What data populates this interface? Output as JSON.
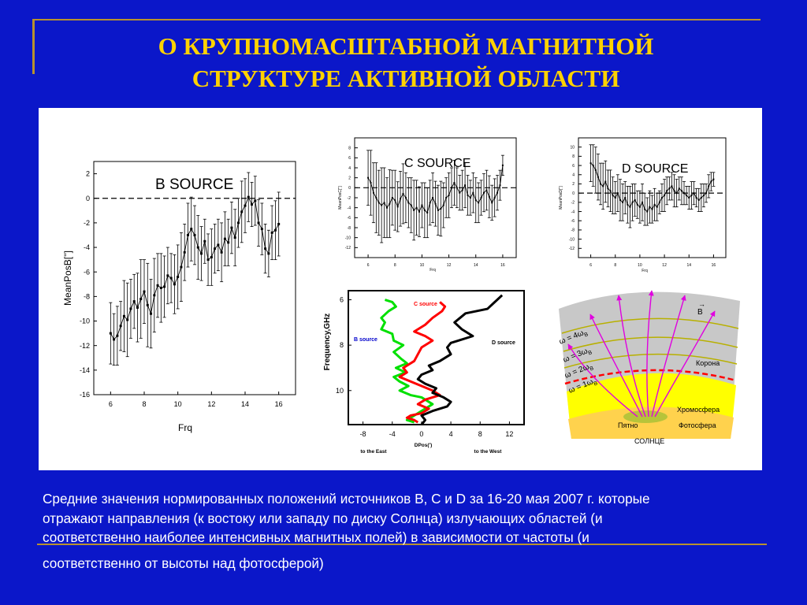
{
  "slide": {
    "title_line1": "О КРУПНОМАСШТАБНОЙ МАГНИТНОЙ",
    "title_line2": "СТРУКТУРЕ АКТИВНОЙ ОБЛАСТИ",
    "caption_lines": [
      " Средние значения нормированных положений источников B, C и D за 16-20 мая 2007 г. которые",
      "отражают направления (к востоку или западу по диску Солнца) излучающих областей (и",
      "соответственно наиболее интенсивных магнитных полей) в зависимости от частоты (и",
      "соответственно от высоты над фотосферой)"
    ],
    "colors": {
      "background": "#0b17c9",
      "title": "#ffd200",
      "rule": "#b8922e",
      "caption": "#ffffff"
    }
  },
  "chart_data": [
    {
      "id": "b-source",
      "type": "line",
      "title": "B SOURCE",
      "xlabel": "Frq",
      "ylabel": "MeanPosB['']",
      "xlim": [
        5,
        17
      ],
      "ylim": [
        -16,
        3
      ],
      "xticks": [
        6,
        8,
        10,
        12,
        14,
        16
      ],
      "yticks": [
        2,
        0,
        -2,
        -4,
        -6,
        -8,
        -10,
        -12,
        -14,
        -16
      ],
      "reference_line": 0,
      "x": [
        6.0,
        6.2,
        6.4,
        6.6,
        6.8,
        7.0,
        7.2,
        7.4,
        7.6,
        7.8,
        8.0,
        8.2,
        8.4,
        8.6,
        8.8,
        9.0,
        9.2,
        9.4,
        9.6,
        9.8,
        10.0,
        10.2,
        10.4,
        10.6,
        10.8,
        11.0,
        11.2,
        11.4,
        11.6,
        11.8,
        12.0,
        12.2,
        12.4,
        12.6,
        12.8,
        13.0,
        13.2,
        13.4,
        13.6,
        13.8,
        14.0,
        14.2,
        14.4,
        14.6,
        14.8,
        15.0,
        15.2,
        15.4,
        15.6,
        15.8,
        16.0
      ],
      "y": [
        -11,
        -11.5,
        -11.2,
        -10.4,
        -9.6,
        -9.9,
        -9.0,
        -8.4,
        -8.9,
        -8.2,
        -7.6,
        -8.7,
        -9.4,
        -7.9,
        -7.1,
        -7.3,
        -7.2,
        -6.3,
        -6.5,
        -7.0,
        -6.4,
        -5.6,
        -4.4,
        -3.0,
        -2.5,
        -3.0,
        -4.0,
        -4.5,
        -3.5,
        -5.0,
        -4.8,
        -4.1,
        -3.8,
        -4.4,
        -3.3,
        -3.6,
        -2.4,
        -3.2,
        -2.0,
        -1.1,
        -0.6,
        0.1,
        -0.5,
        -0.2,
        -2.0,
        -2.5,
        -4.1,
        -4.5,
        -2.8,
        -2.6,
        -2.1
      ],
      "error": [
        2.5,
        2.1,
        2.4,
        2.0,
        2.9,
        3.0,
        2.4,
        2.2,
        2.8,
        3.2,
        2.6,
        3.4,
        2.8,
        3.0,
        2.6,
        2.8,
        2.5,
        2.3,
        2.0,
        2.4,
        2.6,
        2.8,
        2.3,
        2.6,
        2.6,
        2.4,
        2.6,
        2.2,
        1.8,
        2.1,
        2.3,
        2.0,
        2.1,
        2.4,
        2.2,
        1.9,
        2.1,
        2.3,
        2.0,
        2.5,
        2.2,
        2.0,
        1.8,
        2.0,
        1.9,
        2.1,
        2.0,
        1.9,
        2.2,
        2.4,
        2.6
      ]
    },
    {
      "id": "c-source",
      "type": "line",
      "title": "C SOURCE",
      "xlabel": "Frq",
      "ylabel": "MeanPosC['']",
      "xlim": [
        5,
        17
      ],
      "ylim": [
        -14,
        10
      ],
      "xticks": [
        6,
        8,
        10,
        12,
        14,
        16
      ],
      "yticks": [
        8,
        6,
        4,
        2,
        0,
        -2,
        -4,
        -6,
        -8,
        -10,
        -12
      ],
      "reference_line": 0,
      "x": [
        6.0,
        6.2,
        6.4,
        6.6,
        6.8,
        7.0,
        7.2,
        7.4,
        7.6,
        7.8,
        8.0,
        8.2,
        8.4,
        8.6,
        8.8,
        9.0,
        9.2,
        9.4,
        9.6,
        9.8,
        10.0,
        10.2,
        10.4,
        10.6,
        10.8,
        11.0,
        11.2,
        11.4,
        11.6,
        11.8,
        12.0,
        12.2,
        12.4,
        12.6,
        12.8,
        13.0,
        13.2,
        13.4,
        13.6,
        13.8,
        14.0,
        14.2,
        14.4,
        14.6,
        14.8,
        15.0,
        15.2,
        15.4,
        15.6,
        15.8,
        16.0
      ],
      "y": [
        2.0,
        1.0,
        -1.0,
        -2.0,
        -3.0,
        -3.5,
        -3.0,
        -4.0,
        -3.2,
        -2.0,
        -2.5,
        -3.8,
        -2.2,
        -1.2,
        -2.0,
        -3.0,
        -3.5,
        -4.5,
        -4.0,
        -4.8,
        -3.5,
        -4.5,
        -5.0,
        -3.0,
        -2.0,
        -3.2,
        -4.5,
        -4.2,
        -3.5,
        -2.0,
        -1.5,
        0.0,
        1.0,
        0.0,
        -1.0,
        -0.5,
        0.5,
        -1.5,
        -2.0,
        -1.0,
        -2.5,
        -3.0,
        -2.0,
        -1.0,
        -0.5,
        -1.8,
        -3.0,
        -2.0,
        -1.0,
        0.5,
        4.5
      ],
      "error": [
        5.5,
        6.5,
        6.0,
        7.0,
        6.5,
        7.5,
        7.0,
        6.0,
        6.8,
        5.5,
        6.0,
        5.0,
        5.5,
        6.0,
        5.0,
        5.0,
        5.5,
        6.0,
        5.5,
        5.0,
        4.5,
        5.5,
        5.0,
        4.5,
        5.0,
        4.5,
        5.0,
        5.5,
        4.5,
        4.0,
        4.5,
        4.0,
        4.5,
        4.0,
        3.5,
        4.0,
        4.5,
        4.0,
        3.5,
        4.0,
        4.5,
        4.0,
        3.5,
        3.8,
        4.0,
        4.2,
        3.5,
        3.8,
        3.5,
        3.0,
        2.0
      ]
    },
    {
      "id": "d-source",
      "type": "line",
      "title": "D SOURCE",
      "xlabel": "Frq",
      "ylabel": "MeanPosD['']",
      "xlim": [
        5,
        17
      ],
      "ylim": [
        -14,
        12
      ],
      "xticks": [
        6,
        8,
        10,
        12,
        14,
        16
      ],
      "yticks": [
        10,
        8,
        6,
        4,
        2,
        0,
        -2,
        -4,
        -6,
        -8,
        -10,
        -12
      ],
      "reference_line": 0,
      "x": [
        6.0,
        6.2,
        6.4,
        6.6,
        6.8,
        7.0,
        7.2,
        7.4,
        7.6,
        7.8,
        8.0,
        8.2,
        8.4,
        8.6,
        8.8,
        9.0,
        9.2,
        9.4,
        9.6,
        9.8,
        10.0,
        10.2,
        10.4,
        10.6,
        10.8,
        11.0,
        11.2,
        11.4,
        11.6,
        11.8,
        12.0,
        12.2,
        12.4,
        12.6,
        12.8,
        13.0,
        13.2,
        13.4,
        13.6,
        13.8,
        14.0,
        14.2,
        14.4,
        14.6,
        14.8,
        15.0,
        15.2,
        15.4,
        15.6,
        15.8,
        16.0
      ],
      "y": [
        6.5,
        6.0,
        5.0,
        3.5,
        2.0,
        1.5,
        2.5,
        1.0,
        0.5,
        -0.5,
        -1.0,
        0.0,
        -1.5,
        -2.0,
        -1.0,
        -2.5,
        -3.0,
        -2.0,
        -1.5,
        -2.5,
        -3.0,
        -2.0,
        -3.5,
        -4.0,
        -3.0,
        -3.5,
        -2.5,
        -3.0,
        -2.0,
        -1.0,
        -0.5,
        0.5,
        1.0,
        1.5,
        0.5,
        0.0,
        1.0,
        0.5,
        0.0,
        -0.5,
        -1.0,
        -0.5,
        0.0,
        -1.0,
        -1.5,
        -1.0,
        -0.5,
        0.0,
        1.5,
        2.5,
        3.0
      ],
      "error": [
        4.0,
        4.5,
        5.0,
        5.0,
        4.5,
        5.0,
        4.5,
        4.0,
        4.5,
        4.0,
        3.5,
        4.0,
        4.5,
        4.0,
        3.5,
        4.0,
        4.5,
        4.0,
        3.5,
        3.0,
        3.5,
        4.0,
        3.5,
        3.0,
        3.5,
        3.0,
        3.5,
        3.0,
        2.5,
        3.0,
        3.5,
        3.0,
        2.5,
        3.0,
        3.5,
        3.0,
        2.5,
        3.0,
        2.5,
        2.0,
        2.5,
        3.0,
        2.5,
        2.0,
        2.5,
        3.0,
        2.5,
        2.0,
        2.5,
        2.0,
        1.5
      ]
    },
    {
      "id": "dpos-frequency",
      "type": "line",
      "xlabel": "DPos(')",
      "ylabel": "Frequency,GHz",
      "xlim": [
        -10,
        14
      ],
      "ylim": [
        11.5,
        5.6
      ],
      "xticks": [
        -8,
        -4,
        0,
        4,
        8,
        12
      ],
      "yticks": [
        6,
        8,
        10
      ],
      "annotations": {
        "east": "to the East",
        "west": "to the West"
      },
      "series": [
        {
          "name": "B source",
          "color": "#00e000",
          "x": [
            -5.0,
            -4.0,
            -3.5,
            -4.5,
            -5.5,
            -5.0,
            -5.5,
            -4.0,
            -3.8,
            -2.5,
            -3.8,
            -2.8,
            -2.0,
            -3.5,
            -2.2,
            -3.8,
            -3.0,
            -1.8,
            -3.0,
            -1.5,
            0.0,
            1.0,
            1.5,
            0.0,
            -1.0,
            -2.0,
            -1.0
          ],
          "y": [
            6.0,
            6.1,
            6.3,
            6.5,
            6.8,
            7.0,
            7.3,
            7.5,
            7.8,
            8.0,
            8.3,
            8.6,
            8.8,
            9.0,
            9.2,
            9.4,
            9.6,
            9.8,
            10.0,
            10.2,
            10.3,
            10.5,
            10.6,
            10.9,
            11.1,
            11.3,
            11.4
          ]
        },
        {
          "name": "C source",
          "color": "#ff0000",
          "x": [
            2.5,
            3.2,
            2.8,
            1.5,
            0.5,
            -1.0,
            0.5,
            1.5,
            0.0,
            -0.5,
            -1.0,
            -2.5,
            -2.0,
            -3.0,
            -1.5,
            0.0,
            1.5,
            2.5,
            0.5,
            -0.5,
            1.0,
            0.0,
            -1.5,
            -2.0,
            -1.0,
            -0.5
          ],
          "y": [
            6.1,
            6.3,
            6.5,
            6.8,
            7.1,
            7.4,
            7.6,
            7.8,
            8.1,
            8.4,
            8.7,
            9.0,
            9.2,
            9.4,
            9.6,
            9.8,
            10.0,
            10.2,
            10.4,
            10.6,
            10.8,
            11.0,
            11.1,
            11.2,
            11.3,
            11.4
          ]
        },
        {
          "name": "D source",
          "color": "#000000",
          "x": [
            11.0,
            10.0,
            9.0,
            6.0,
            4.5,
            5.5,
            7.0,
            5.0,
            4.0,
            3.5,
            4.0,
            2.5,
            1.0,
            1.5,
            0.0,
            -0.5,
            0.5,
            2.0,
            1.5,
            3.0,
            4.0,
            3.5,
            1.5,
            0.0,
            0.5,
            0.0
          ],
          "y": [
            5.8,
            6.1,
            6.4,
            6.6,
            7.0,
            7.3,
            7.6,
            7.8,
            7.9,
            8.1,
            8.4,
            8.7,
            8.9,
            9.1,
            9.3,
            9.5,
            9.7,
            9.9,
            10.1,
            10.3,
            10.5,
            10.7,
            10.9,
            11.1,
            11.3,
            11.5
          ]
        }
      ]
    }
  ],
  "diagram": {
    "labels": {
      "field": "B",
      "corona": "Корона",
      "chromosphere": "Хромосфера",
      "spot": "Пятно",
      "photosphere": "Фотосфера",
      "sun": "СОЛНЦЕ",
      "w4": "ω = 4ω",
      "w3": "ω = 3ω",
      "w2": "ω = 2ω",
      "w1": "ω = 1ω",
      "sub": "B"
    }
  }
}
